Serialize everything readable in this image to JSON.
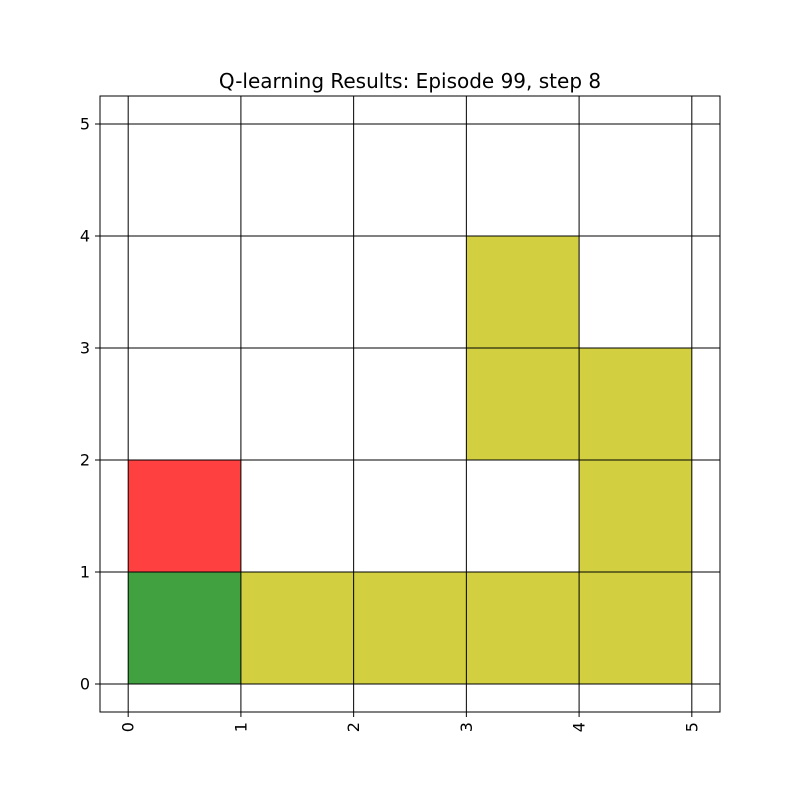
{
  "chart_data": {
    "type": "heatmap",
    "title": "Q-learning Results: Episode 99, step 8",
    "xlabel": "",
    "ylabel": "",
    "xlim": [
      -0.25,
      5.25
    ],
    "ylim": [
      -0.25,
      5.25
    ],
    "xticks": [
      "0",
      "1",
      "2",
      "3",
      "4",
      "5"
    ],
    "yticks": [
      "0",
      "1",
      "2",
      "3",
      "4",
      "5"
    ],
    "grid": true,
    "cells": [
      {
        "x": 0,
        "y": 0,
        "color": "#41a141"
      },
      {
        "x": 0,
        "y": 1,
        "color": "#ff4040"
      },
      {
        "x": 1,
        "y": 0,
        "color": "#d2d040"
      },
      {
        "x": 2,
        "y": 0,
        "color": "#d2d040"
      },
      {
        "x": 3,
        "y": 0,
        "color": "#d2d040"
      },
      {
        "x": 4,
        "y": 0,
        "color": "#d2d040"
      },
      {
        "x": 4,
        "y": 1,
        "color": "#d2d040"
      },
      {
        "x": 4,
        "y": 2,
        "color": "#d2d040"
      },
      {
        "x": 3,
        "y": 2,
        "color": "#d2d040"
      },
      {
        "x": 3,
        "y": 3,
        "color": "#d2d040"
      }
    ]
  }
}
